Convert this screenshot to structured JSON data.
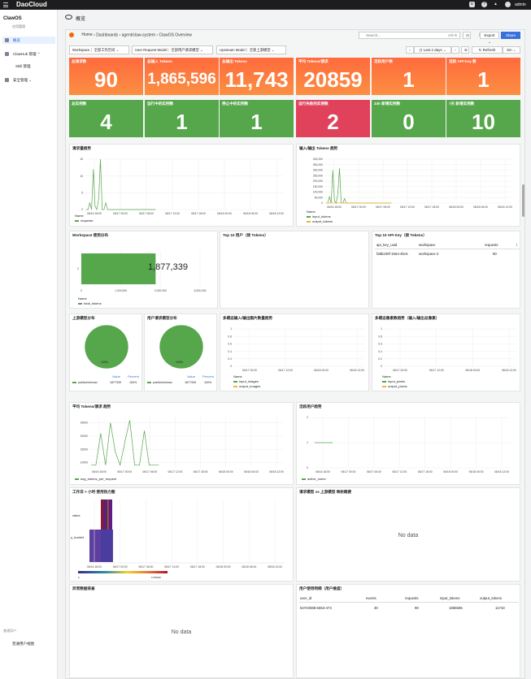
{
  "topbar": {
    "brand": "DaoCloud",
    "user": "admin",
    "icons": [
      "chat-icon",
      "help-icon",
      "bell-icon",
      "user-icon"
    ]
  },
  "sidebar": {
    "app_name": "ClawOS",
    "app_sub": "应用管理",
    "items": [
      {
        "label": "概览",
        "active": true
      },
      {
        "label": "ClawHub 管理"
      },
      {
        "label": "Skill 管理"
      },
      {
        "label": "安全管理"
      }
    ],
    "bottom_label": "普通用户",
    "bottom_link": "普通用户视图"
  },
  "page": {
    "title": "概览"
  },
  "toolbar": {
    "crumbs": [
      "Home",
      "Dashboards",
      "agent/claw-system",
      "ClawOS Overview"
    ],
    "search_placeholder": "Search...",
    "shortcut": "ctrl+k",
    "export": "Export",
    "share": "Share",
    "time_range": "Last 2 days",
    "refresh": "Refresh",
    "interval": "5m"
  },
  "variables": [
    {
      "label": "Workspace",
      "value": "全部工作空间"
    },
    {
      "label": "User Request Model",
      "value": "全部用户请求模型"
    },
    {
      "label": "Upstream Model",
      "value": "全部上游模型"
    }
  ],
  "stats_row1": [
    {
      "title": "总请求数",
      "value": "90",
      "color": "orange"
    },
    {
      "title": "总输入 Tokens",
      "value": "1,865,596",
      "color": "orange"
    },
    {
      "title": "总输出 Tokens",
      "value": "11,743",
      "color": "orange"
    },
    {
      "title": "平均 Tokens/请求",
      "value": "20859",
      "color": "orange"
    },
    {
      "title": "活跃用户数",
      "value": "1",
      "color": "orange"
    },
    {
      "title": "活跃 API Key 数",
      "value": "1",
      "color": "orange"
    }
  ],
  "stats_row2": [
    {
      "title": "总实例数",
      "value": "4",
      "color": "green"
    },
    {
      "title": "运行中的实例数",
      "value": "1",
      "color": "green"
    },
    {
      "title": "停止中的实例数",
      "value": "1",
      "color": "green"
    },
    {
      "title": "运行失败的实例数",
      "value": "2",
      "color": "red"
    },
    {
      "title": "24h 新增实例数",
      "value": "0",
      "color": "green"
    },
    {
      "title": "7天 新增实例数",
      "value": "10",
      "color": "green"
    }
  ],
  "panels": {
    "req_trend": {
      "title": "请求量趋势",
      "legend_header": "Name",
      "legend": [
        "requests"
      ]
    },
    "tokens_trend": {
      "title": "输入/输出 Tokens 趋势",
      "legend_header": "Name",
      "legend": [
        "input_tokens",
        "output_tokens"
      ]
    },
    "ws_dist": {
      "title": "Workspace 使用分布",
      "bar_label": "1,877,339",
      "legend_header": "Name",
      "legend": [
        "total_tokens"
      ]
    },
    "top_users": {
      "title": "Top 10 用户（按 Tokens）"
    },
    "top_keys": {
      "title": "Top 10 API Key（按 Tokens）",
      "headers": [
        "api_key_uuid",
        "workspace",
        "requests",
        "i"
      ],
      "rows": [
        [
          "fa8b230f-1564-4bc5",
          "workspace-2",
          "90",
          ""
        ]
      ]
    },
    "upstream_dist": {
      "title": "上游模型分布",
      "pie_label": "100%",
      "legend_headers": [
        "Value",
        "Percent"
      ],
      "legend_rows": [
        [
          "public/minimax",
          "1877339",
          "100%"
        ]
      ]
    },
    "user_model_dist": {
      "title": "用户请求模型分布",
      "pie_label": "100%",
      "legend_headers": [
        "Value",
        "Percent"
      ],
      "legend_rows": [
        [
          "public/minimax",
          "1877339",
          "100%"
        ]
      ]
    },
    "mm_input": {
      "title": "多模态输入/输出图片数量趋势",
      "legend_header": "Name",
      "legend": [
        "input_images",
        "output_images"
      ]
    },
    "mm_pixels": {
      "title": "多模态像素数趋势（输入/输出总像素）",
      "legend_header": "Name",
      "legend": [
        "input_pixels",
        "output_pixels"
      ]
    },
    "avg_tokens": {
      "title": "平均 Tokens/请求 趋势",
      "legend": [
        "avg_tokens_per_request"
      ]
    },
    "active_users": {
      "title": "活跃用户趋势",
      "legend": [
        "active_users"
      ]
    },
    "heatmap": {
      "title": "工作日 × 小时 使用热力图",
      "row_labels": [
        "value",
        "y_bucket"
      ],
      "scale_min": "0",
      "scale_max": "1765208"
    },
    "model_map": {
      "title": "请求模型 vs 上游模型 映射概要",
      "empty": "No data"
    },
    "anomaly": {
      "title": "异常数据排查",
      "empty": "No data"
    },
    "detail": {
      "title": "用户使用明细（用户维度）",
      "headers": [
        "user_id",
        "events",
        "requests",
        "input_tokens",
        "output_tokens"
      ],
      "rows": [
        [
          "527e0598-6653-473",
          "30",
          "90",
          "1865596",
          "11743"
        ]
      ]
    }
  },
  "x_ticks_short": [
    "06/16 18:00",
    "06/17 00:00",
    "06/17 06:00",
    "06/17 12:00",
    "06/17 18:00",
    "06/18 00:00",
    "06/18 06:00",
    "06/18 12:00"
  ],
  "x_ticks_mm": [
    "06/17 00:00",
    "06/17 12:00",
    "06/18 00:00",
    "06/18 12:00"
  ],
  "x_ticks_active": [
    "06/16 18:00",
    "06/17 00:00",
    "06/17 06:00",
    "06/17 12:00",
    "06/17 18:00",
    "06/18 00:00",
    "06/18 06:00",
    "06/18 12:00"
  ],
  "x_ticks_heat": [
    "06/16 18:00",
    "06/17 00:00",
    "06/17 06:00",
    "06/17 12:00",
    "06/17 18:00",
    "06/18 00:00",
    "06/18 06:00",
    "06/18 12:00"
  ],
  "chart_data": [
    {
      "type": "line",
      "title": "请求量趋势",
      "y_ticks": [
        "0",
        "5",
        "10",
        "15"
      ],
      "ylim": [
        0,
        15
      ],
      "series": [
        {
          "name": "requests",
          "color": "#56a64b",
          "values": [
            0,
            0,
            2,
            0,
            12,
            1,
            0,
            3,
            15,
            0,
            0,
            2,
            0,
            0,
            0,
            0,
            0,
            0,
            0,
            0,
            0,
            0,
            0,
            0,
            0,
            0,
            0,
            0,
            0,
            0,
            0,
            0,
            0,
            0,
            0,
            0,
            0,
            0,
            0,
            0
          ]
        }
      ]
    },
    {
      "type": "line",
      "title": "输入/输出 Tokens 趋势",
      "y_ticks": [
        "0",
        "50,000",
        "100,000",
        "150,000",
        "200,000",
        "250,000",
        "300,000",
        "350,000",
        "400,000"
      ],
      "ylim": [
        0,
        400000
      ],
      "series": [
        {
          "name": "input_tokens",
          "color": "#56a64b",
          "values": [
            0,
            0,
            60000,
            0,
            300000,
            20000,
            0,
            80000,
            320000,
            0,
            0,
            40000,
            0,
            0,
            0,
            0,
            0,
            0,
            0,
            0,
            0,
            0,
            0,
            0,
            0,
            0,
            0,
            0,
            0,
            0,
            0,
            0,
            0,
            0,
            0,
            0,
            0,
            0,
            0,
            0
          ]
        },
        {
          "name": "output_tokens",
          "color": "#f2b232",
          "values": [
            0,
            0,
            300,
            0,
            2000,
            100,
            0,
            500,
            2500,
            0,
            0,
            300,
            0,
            0,
            0,
            0,
            0,
            0,
            0,
            0,
            0,
            0,
            0,
            0,
            0,
            0,
            0,
            0,
            0,
            0,
            0,
            0,
            0,
            0,
            0,
            0,
            0,
            0,
            0,
            0
          ]
        }
      ]
    },
    {
      "type": "bar",
      "title": "Workspace 使用分布",
      "categories": [
        "2"
      ],
      "values": [
        1877339
      ],
      "x_ticks": [
        "0",
        "1,000,000",
        "2,000,000",
        "3,000,000"
      ],
      "xlim": [
        0,
        3000000
      ]
    },
    {
      "type": "pie",
      "title": "上游模型分布",
      "categories": [
        "public/minimax"
      ],
      "values": [
        100
      ]
    },
    {
      "type": "pie",
      "title": "用户请求模型分布",
      "categories": [
        "public/minimax"
      ],
      "values": [
        100
      ]
    },
    {
      "type": "line",
      "title": "多模态输入/输出图片数量趋势",
      "y_ticks": [
        "0",
        "0.2",
        "0.4",
        "0.6",
        "0.8",
        "1"
      ],
      "ylim": [
        0,
        1
      ],
      "series": [
        {
          "name": "input_images",
          "values": []
        },
        {
          "name": "output_images",
          "values": []
        }
      ]
    },
    {
      "type": "line",
      "title": "多模态像素数趋势（输入/输出总像素）",
      "y_ticks": [
        "0",
        "0.2",
        "0.4",
        "0.6",
        "0.8",
        "1"
      ],
      "ylim": [
        0,
        1
      ],
      "series": [
        {
          "name": "input_pixels",
          "values": []
        },
        {
          "name": "output_pixels",
          "values": []
        }
      ]
    },
    {
      "type": "line",
      "title": "平均 Tokens/请求 趋势",
      "y_ticks": [
        "10000",
        "15000",
        "20000",
        "25000"
      ],
      "ylim": [
        8000,
        27000
      ],
      "series": [
        {
          "name": "avg_tokens_per_request",
          "color": "#56a64b",
          "values": [
            9000,
            9000,
            21000,
            9000,
            25000,
            14000,
            9000,
            18000,
            26000,
            9000,
            9000,
            22000,
            9000,
            9000,
            9000
          ]
        }
      ]
    },
    {
      "type": "line",
      "title": "活跃用户趋势",
      "y_ticks": [
        "0",
        "1",
        "2"
      ],
      "ylim": [
        0,
        2
      ],
      "series": [
        {
          "name": "active_users",
          "color": "#56a64b",
          "values": [
            1,
            1,
            1,
            1,
            1,
            1
          ]
        }
      ]
    }
  ]
}
